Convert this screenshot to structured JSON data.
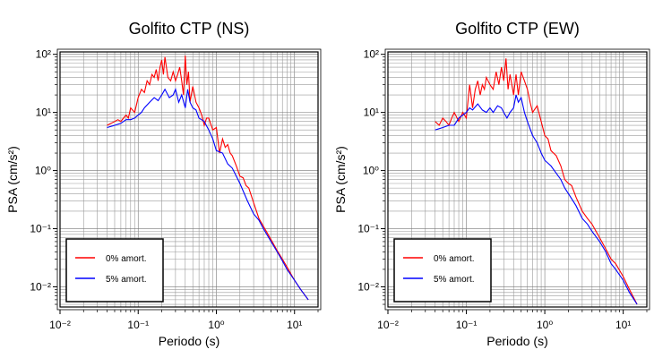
{
  "chart_data": [
    {
      "type": "line",
      "title": "Golfito CTP (NS)",
      "xlabel": "Periodo (s)",
      "ylabel": "PSA (cm/s²)",
      "x_scale": "log",
      "y_scale": "log",
      "xlim": [
        0.01,
        20
      ],
      "ylim": [
        0.0045,
        110
      ],
      "x_ticks": [
        "10⁻²",
        "10⁻¹",
        "10⁰",
        "10¹"
      ],
      "y_ticks": [
        "10⁻²",
        "10⁻¹",
        "10⁰",
        "10¹",
        "10²"
      ],
      "grid": true,
      "legend_position": "bottom-left",
      "series": [
        {
          "name": "0% amort.",
          "color": "#ff0000",
          "x": [
            0.04,
            0.045,
            0.05,
            0.055,
            0.06,
            0.065,
            0.07,
            0.075,
            0.08,
            0.09,
            0.1,
            0.11,
            0.12,
            0.13,
            0.14,
            0.15,
            0.16,
            0.17,
            0.18,
            0.19,
            0.2,
            0.21,
            0.22,
            0.24,
            0.26,
            0.28,
            0.3,
            0.32,
            0.34,
            0.36,
            0.38,
            0.4,
            0.42,
            0.44,
            0.46,
            0.5,
            0.55,
            0.6,
            0.65,
            0.7,
            0.75,
            0.8,
            0.9,
            1.0,
            1.1,
            1.2,
            1.3,
            1.4,
            1.5,
            1.6,
            1.8,
            2.0,
            2.2,
            2.4,
            2.6,
            3.0,
            3.5,
            4.0,
            5.0,
            6.0,
            7.0,
            8.0,
            10.0,
            12.0,
            15.0
          ],
          "values": [
            6,
            6.5,
            7,
            7.5,
            7,
            8,
            9,
            8,
            12,
            10,
            18,
            25,
            22,
            35,
            30,
            45,
            40,
            55,
            35,
            60,
            80,
            45,
            90,
            40,
            35,
            50,
            35,
            45,
            60,
            35,
            20,
            95,
            30,
            50,
            15,
            28,
            15,
            12,
            9,
            6,
            8,
            8,
            5,
            5.5,
            2,
            3.5,
            2.5,
            2.8,
            2,
            1.8,
            1.2,
            0.8,
            0.75,
            0.55,
            0.5,
            0.28,
            0.15,
            0.11,
            0.065,
            0.042,
            0.03,
            0.022,
            0.013,
            0.009,
            0.006
          ]
        },
        {
          "name": "5% amort.",
          "color": "#0000ff",
          "x": [
            0.04,
            0.05,
            0.06,
            0.07,
            0.08,
            0.09,
            0.1,
            0.11,
            0.12,
            0.14,
            0.16,
            0.18,
            0.2,
            0.22,
            0.25,
            0.28,
            0.3,
            0.33,
            0.36,
            0.4,
            0.43,
            0.46,
            0.5,
            0.55,
            0.6,
            0.7,
            0.8,
            0.9,
            1.0,
            1.2,
            1.4,
            1.6,
            1.8,
            2.0,
            2.5,
            3.0,
            3.5,
            4.0,
            5.0,
            6.0,
            7.0,
            8.0,
            10.0,
            12.0,
            15.0
          ],
          "values": [
            5.5,
            6,
            6.5,
            7.5,
            7.5,
            8,
            9,
            10,
            12,
            15,
            18,
            16,
            20,
            25,
            18,
            20,
            25,
            15,
            20,
            12,
            25,
            15,
            12,
            11,
            8,
            7,
            5,
            3.5,
            2.2,
            2,
            1.3,
            1.1,
            0.8,
            0.6,
            0.3,
            0.18,
            0.14,
            0.1,
            0.06,
            0.04,
            0.028,
            0.02,
            0.013,
            0.009,
            0.006
          ]
        }
      ]
    },
    {
      "type": "line",
      "title": "Golfito CTP (EW)",
      "xlabel": "Periodo (s)",
      "ylabel": "PSA (cm/s²)",
      "x_scale": "log",
      "y_scale": "log",
      "xlim": [
        0.01,
        20
      ],
      "ylim": [
        0.0045,
        110
      ],
      "x_ticks": [
        "10⁻²",
        "10⁻¹",
        "10⁰",
        "10¹"
      ],
      "y_ticks": [
        "10⁻²",
        "10⁻¹",
        "10⁰",
        "10¹",
        "10²"
      ],
      "grid": true,
      "legend_position": "bottom-left",
      "series": [
        {
          "name": "0% amort.",
          "color": "#ff0000",
          "x": [
            0.04,
            0.045,
            0.05,
            0.055,
            0.06,
            0.065,
            0.07,
            0.08,
            0.09,
            0.1,
            0.11,
            0.12,
            0.13,
            0.14,
            0.15,
            0.16,
            0.17,
            0.18,
            0.2,
            0.22,
            0.24,
            0.26,
            0.28,
            0.3,
            0.32,
            0.34,
            0.36,
            0.38,
            0.4,
            0.43,
            0.46,
            0.5,
            0.55,
            0.6,
            0.65,
            0.7,
            0.8,
            0.9,
            1.0,
            1.1,
            1.2,
            1.4,
            1.6,
            1.8,
            2.0,
            2.2,
            2.5,
            3.0,
            3.5,
            4.0,
            4.5,
            5.0,
            6.0,
            7.0,
            8.0,
            10.0,
            12.0,
            15.0
          ],
          "values": [
            7,
            6,
            8,
            7,
            6,
            8,
            10,
            7,
            10,
            8,
            30,
            12,
            25,
            35,
            20,
            30,
            25,
            40,
            30,
            25,
            50,
            30,
            60,
            35,
            85,
            25,
            45,
            30,
            20,
            45,
            20,
            50,
            35,
            25,
            15,
            10,
            13,
            7,
            4,
            3.5,
            2.2,
            1.8,
            1.2,
            0.7,
            0.6,
            0.55,
            0.35,
            0.2,
            0.15,
            0.12,
            0.09,
            0.07,
            0.045,
            0.03,
            0.025,
            0.015,
            0.009,
            0.005
          ]
        },
        {
          "name": "5% amort.",
          "color": "#0000ff",
          "x": [
            0.04,
            0.05,
            0.06,
            0.07,
            0.08,
            0.09,
            0.1,
            0.11,
            0.12,
            0.14,
            0.16,
            0.18,
            0.2,
            0.22,
            0.25,
            0.28,
            0.3,
            0.33,
            0.36,
            0.4,
            0.43,
            0.46,
            0.5,
            0.55,
            0.6,
            0.7,
            0.8,
            0.9,
            1.0,
            1.2,
            1.4,
            1.6,
            1.8,
            2.0,
            2.5,
            3.0,
            3.5,
            4.0,
            5.0,
            6.0,
            7.0,
            8.0,
            10.0,
            12.0,
            15.0
          ],
          "values": [
            5,
            5.5,
            6,
            6,
            8,
            9,
            10,
            12,
            11,
            14,
            11,
            10,
            12,
            10,
            13,
            12,
            10,
            8,
            10,
            12,
            20,
            15,
            18,
            10,
            7,
            4,
            3,
            2,
            1.5,
            1.2,
            0.9,
            0.7,
            0.5,
            0.4,
            0.25,
            0.15,
            0.12,
            0.09,
            0.06,
            0.04,
            0.025,
            0.02,
            0.013,
            0.008,
            0.005
          ]
        }
      ]
    }
  ]
}
